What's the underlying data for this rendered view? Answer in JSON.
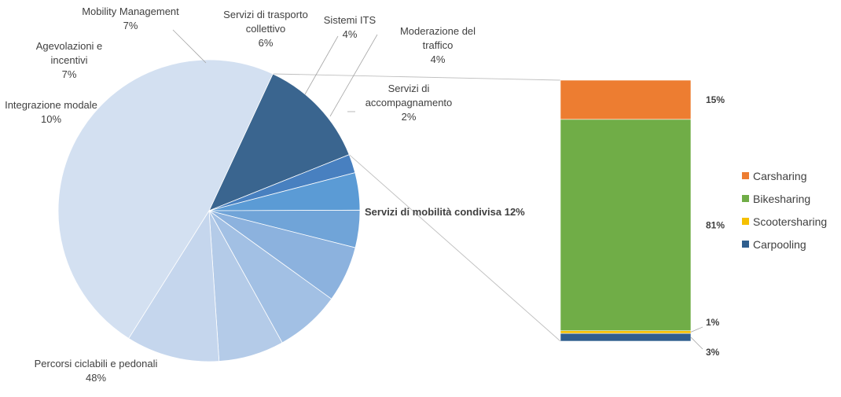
{
  "chart_data": {
    "type": "pie",
    "subtype": "bar-of-pie",
    "title": "",
    "pie": {
      "slices": [
        {
          "label": "Servizi di mobilità condivisa",
          "value": 12,
          "value_label": "12%",
          "color": "#3a658f",
          "bold": true
        },
        {
          "label": "Servizi di accompagnamento",
          "value": 2,
          "value_label": "2%",
          "color": "#4880c0"
        },
        {
          "label": "Moderazione del traffico",
          "value": 4,
          "value_label": "4%",
          "color": "#5b9bd5"
        },
        {
          "label": "Sistemi ITS",
          "value": 4,
          "value_label": "4%",
          "color": "#70a4d8"
        },
        {
          "label": "Servizi di trasporto collettivo",
          "value": 6,
          "value_label": "6%",
          "color": "#8cb2de"
        },
        {
          "label": "Mobility Management",
          "value": 7,
          "value_label": "7%",
          "color": "#a2c0e4"
        },
        {
          "label": "Agevolazioni e incentivi",
          "value": 7,
          "value_label": "7%",
          "color": "#b4cbe8"
        },
        {
          "label": "Integrazione modale",
          "value": 10,
          "value_label": "10%",
          "color": "#c5d6ed"
        },
        {
          "label": "Percorsi ciclabili e pedonali",
          "value": 48,
          "value_label": "48%",
          "color": "#d3e0f1"
        }
      ]
    },
    "bar": {
      "segments": [
        {
          "name": "Carpooling",
          "value": 3,
          "value_label": "3%",
          "color": "#2f5e8e"
        },
        {
          "name": "Scootersharing",
          "value": 1,
          "value_label": "1%",
          "color": "#f5c000"
        },
        {
          "name": "Bikesharing",
          "value": 81,
          "value_label": "81%",
          "color": "#70ad47"
        },
        {
          "name": "Carsharing",
          "value": 15,
          "value_label": "15%",
          "color": "#ed7d31"
        }
      ]
    },
    "legend": {
      "position": "right",
      "items": [
        {
          "name": "Carsharing",
          "color": "#ed7d31"
        },
        {
          "name": "Bikesharing",
          "color": "#70ad47"
        },
        {
          "name": "Scootersharing",
          "color": "#f5c000"
        },
        {
          "name": "Carpooling",
          "color": "#2f5e8e"
        }
      ]
    }
  }
}
